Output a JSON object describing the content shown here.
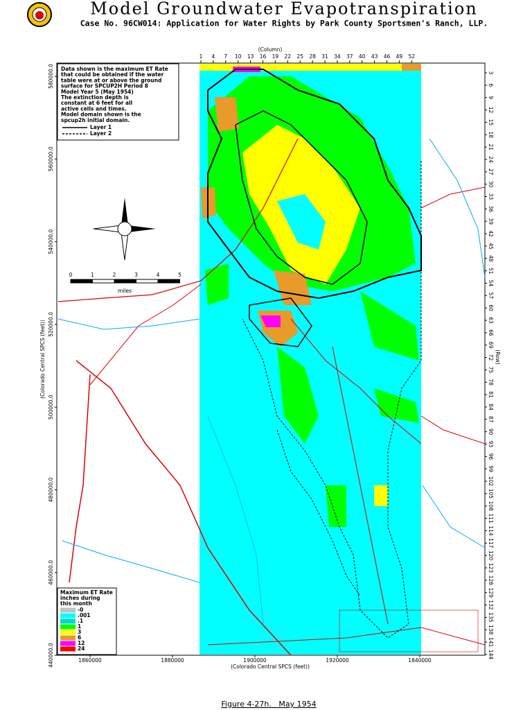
{
  "header": {
    "title": "Model Groundwater Evapotranspiration",
    "subtitle": "Case No. 96CW014: Application for Water Rights by Park County Sportsmen's Ranch, LLP."
  },
  "note": {
    "lines": [
      "Data shown is the maximum ET Rate",
      "that could be obtained if the water",
      "table were at or above the ground",
      "surface for SPCUP2H Period 8",
      "Model Year  5 (May 1954)",
      "The extinction depth is",
      "constant at 6 feet for all",
      "active cells and times.",
      "Model domain shown is the",
      "spcup2h initial domain."
    ],
    "layers": [
      "Layer 1",
      "Layer 2"
    ]
  },
  "columns": {
    "label": "(Column)",
    "ticks": [
      "1",
      "4",
      "7",
      "10",
      "13",
      "16",
      "19",
      "22",
      "25",
      "28",
      "31",
      "34",
      "37",
      "40",
      "43",
      "46",
      "49",
      "52"
    ]
  },
  "rows": {
    "label": "(Row)",
    "ticks": [
      "3",
      "6",
      "9",
      "12",
      "15",
      "18",
      "21",
      "24",
      "27",
      "30",
      "33",
      "36",
      "39",
      "42",
      "45",
      "48",
      "51",
      "54",
      "57",
      "60",
      "63",
      "66",
      "69",
      "72",
      "75",
      "78",
      "81",
      "84",
      "87",
      "90",
      "93",
      "96",
      "99",
      "102",
      "105",
      "108",
      "111",
      "114",
      "117",
      "120",
      "123",
      "126",
      "129",
      "132",
      "135",
      "138",
      "141",
      "144"
    ]
  },
  "y_axis": {
    "label": "(Colorado Central SPCS (feet))",
    "ticks": [
      "580000.0",
      "560000.0",
      "540000.0",
      "520000.0",
      "500000.0",
      "480000.0",
      "460000.0",
      "440000.0"
    ]
  },
  "x_axis": {
    "label": "(Colorado Central SPCS (feet))",
    "ticks": [
      "1860000",
      "1880000",
      "1900000",
      "1920000",
      "1840000"
    ]
  },
  "scale_bar": {
    "ticks": [
      "0",
      "1",
      "2",
      "3",
      "4",
      "5"
    ],
    "unit": "miles"
  },
  "legend": {
    "title_lines": [
      "Maximum ET Rate",
      "inches during",
      "this month"
    ],
    "items": [
      {
        "label": "-0",
        "color": "#c0c0c0"
      },
      {
        "label": ".001",
        "color": "#00ffff"
      },
      {
        "label": ".1",
        "color": "#00d8c8"
      },
      {
        "label": "1",
        "color": "#00ff00"
      },
      {
        "label": "3",
        "color": "#ffff00"
      },
      {
        "label": "6",
        "color": "#e89a2a"
      },
      {
        "label": "12",
        "color": "#ff00ff"
      },
      {
        "label": "24",
        "color": "#ff0000"
      }
    ]
  },
  "caption": "Figure 4-27h.   May 1954"
}
